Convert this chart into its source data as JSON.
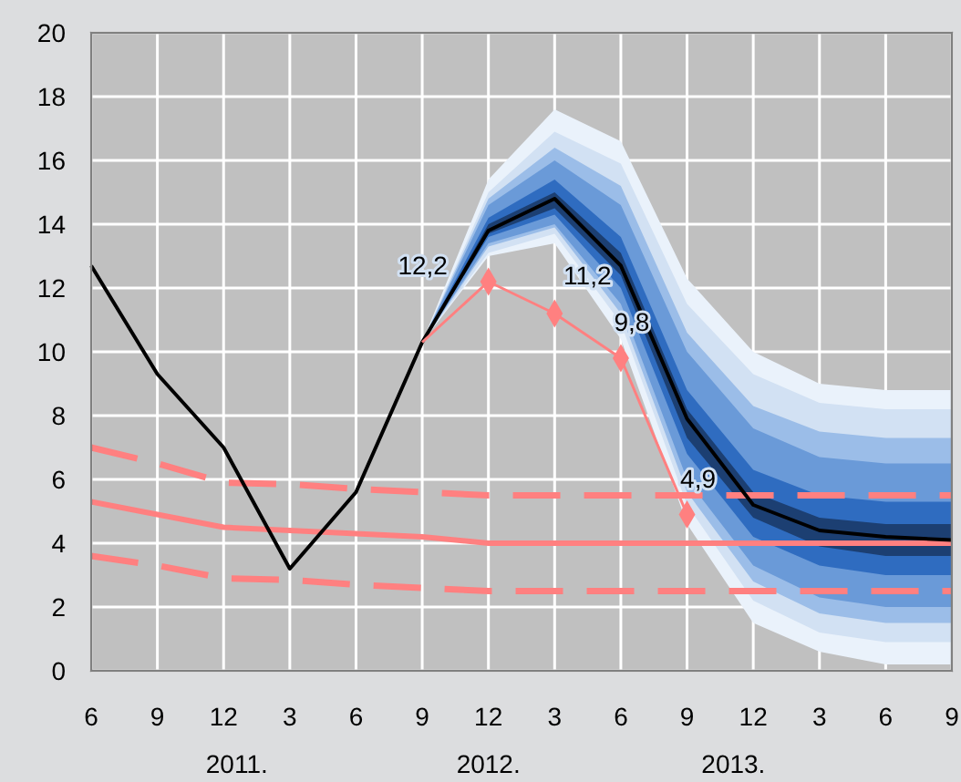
{
  "chart_data": {
    "type": "line",
    "categories": [
      "6",
      "9",
      "12",
      "3",
      "6",
      "9",
      "12",
      "3",
      "6",
      "9",
      "12",
      "3",
      "6",
      "9"
    ],
    "ylim": [
      0,
      20
    ],
    "yticks": [
      0,
      2,
      4,
      6,
      8,
      10,
      12,
      14,
      16,
      18,
      20
    ],
    "grid": true,
    "annotations": [
      "2011.",
      "2012.",
      "2013."
    ],
    "series": [
      {
        "color": "#eaf2fb",
        "marker": "none",
        "values": [
          null,
          null,
          null,
          null,
          null,
          null,
          null,
          null,
          null,
          null,
          null,
          null,
          null,
          null
        ],
        "upper": [
          null,
          null,
          null,
          null,
          null,
          10.3,
          15.4,
          17.6,
          16.6,
          12.3,
          10.0,
          9.0,
          8.8,
          8.8
        ],
        "lower": [
          null,
          null,
          null,
          null,
          null,
          10.3,
          13.0,
          13.4,
          10.4,
          4.6,
          1.5,
          0.6,
          0.2,
          0.2
        ]
      },
      {
        "color": "#d2e1f3",
        "marker": "none",
        "values": [
          null,
          null,
          null,
          null,
          null,
          null,
          null,
          null,
          null,
          null,
          null,
          null,
          null,
          null
        ],
        "upper": [
          null,
          null,
          null,
          null,
          null,
          10.3,
          15.0,
          16.9,
          15.9,
          11.5,
          9.3,
          8.4,
          8.2,
          8.2
        ],
        "lower": [
          null,
          null,
          null,
          null,
          null,
          10.3,
          13.1,
          13.7,
          10.9,
          5.2,
          2.2,
          1.2,
          0.9,
          0.9
        ]
      },
      {
        "color": "#9bbde8",
        "marker": "none",
        "values": [
          null,
          null,
          null,
          null,
          null,
          null,
          null,
          null,
          null,
          null,
          null,
          null,
          null,
          null
        ],
        "upper": [
          null,
          null,
          null,
          null,
          null,
          10.3,
          14.8,
          16.4,
          15.2,
          10.6,
          8.3,
          7.5,
          7.3,
          7.3
        ],
        "lower": [
          null,
          null,
          null,
          null,
          null,
          10.3,
          13.3,
          13.9,
          11.2,
          5.6,
          2.8,
          1.8,
          1.5,
          1.5
        ]
      },
      {
        "color": "#6a9ad8",
        "marker": "none",
        "values": [
          null,
          null,
          null,
          null,
          null,
          null,
          null,
          null,
          null,
          null,
          null,
          null,
          null,
          null
        ],
        "upper": [
          null,
          null,
          null,
          null,
          null,
          10.3,
          14.6,
          16.0,
          14.6,
          10.0,
          7.6,
          6.7,
          6.5,
          6.5
        ],
        "lower": [
          null,
          null,
          null,
          null,
          null,
          10.3,
          13.4,
          14.0,
          11.5,
          6.0,
          3.3,
          2.3,
          2.0,
          2.0
        ]
      },
      {
        "color": "#2f6cc0",
        "marker": "none",
        "values": [
          null,
          null,
          null,
          null,
          null,
          null,
          null,
          null,
          null,
          null,
          null,
          null,
          null,
          null
        ],
        "upper": [
          null,
          null,
          null,
          null,
          null,
          10.3,
          14.2,
          15.4,
          13.6,
          8.8,
          6.3,
          5.5,
          5.3,
          5.3
        ],
        "lower": [
          null,
          null,
          null,
          null,
          null,
          10.3,
          13.6,
          14.3,
          12.0,
          6.8,
          4.2,
          3.3,
          3.0,
          3.0
        ]
      },
      {
        "color": "#1c3f72",
        "marker": "none",
        "values": [
          null,
          null,
          null,
          null,
          null,
          null,
          null,
          null,
          null,
          null,
          null,
          null,
          null,
          null
        ],
        "upper": [
          null,
          null,
          null,
          null,
          null,
          10.3,
          14.0,
          15.0,
          13.1,
          8.2,
          5.6,
          4.8,
          4.6,
          4.6
        ],
        "lower": [
          null,
          null,
          null,
          null,
          null,
          10.3,
          13.7,
          14.5,
          12.4,
          7.3,
          4.8,
          3.9,
          3.6,
          3.6
        ]
      },
      {
        "color": "#ff8080",
        "line_style": "dashed",
        "marker": "none",
        "values": [
          7.0,
          6.5,
          5.9,
          5.85,
          5.7,
          5.6,
          5.5,
          5.5,
          5.5,
          5.5,
          5.5,
          5.5,
          5.5,
          5.5
        ]
      },
      {
        "color": "#ff8080",
        "line_style": "solid",
        "marker": "none",
        "values": [
          5.3,
          4.9,
          4.5,
          4.4,
          4.3,
          4.2,
          4.0,
          4.0,
          4.0,
          4.0,
          4.0,
          4.0,
          4.0,
          4.0
        ]
      },
      {
        "color": "#ff8080",
        "line_style": "dashed",
        "marker": "none",
        "values": [
          3.6,
          3.3,
          2.9,
          2.85,
          2.7,
          2.6,
          2.5,
          2.5,
          2.5,
          2.5,
          2.5,
          2.5,
          2.5,
          2.5
        ]
      },
      {
        "color": "#000000",
        "line_style": "solid",
        "marker": "none",
        "values": [
          12.7,
          9.3,
          7.0,
          3.2,
          5.6,
          10.3,
          13.8,
          14.8,
          12.7,
          7.9,
          5.2,
          4.4,
          4.2,
          4.1
        ]
      },
      {
        "color": "#ff8080",
        "line_style": "solid",
        "marker": "diamond",
        "values": [
          null,
          null,
          null,
          null,
          null,
          10.3,
          12.2,
          11.2,
          9.8,
          4.9,
          null,
          null,
          null,
          null
        ],
        "value_labels": [
          null,
          null,
          null,
          null,
          null,
          null,
          "12,2",
          "11,2",
          "9,8",
          "4,9",
          null,
          null,
          null,
          null
        ]
      }
    ]
  }
}
